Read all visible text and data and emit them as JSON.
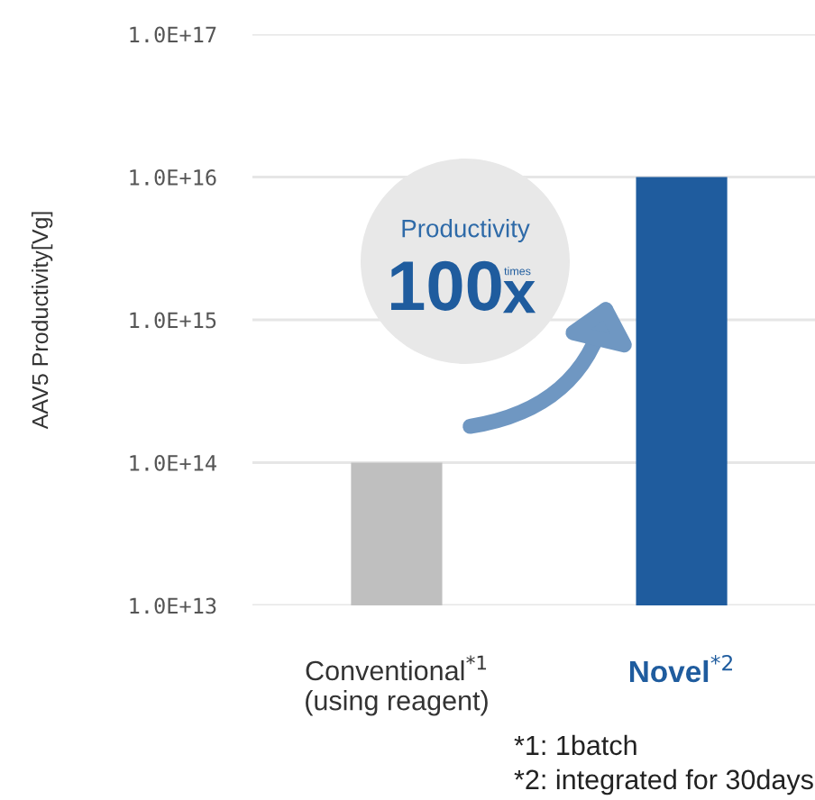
{
  "chart_data": {
    "type": "bar",
    "ylabel": "AAV5 Productivity[Vg]",
    "categories": [
      "Conventional$^{*1}$\n(using reagent)",
      "Novel$^{*2}$"
    ],
    "values": [
      100000000000000.0,
      1e+16
    ],
    "colors": [
      "#bfbfbf",
      "#1f5c9e"
    ],
    "log": "y",
    "ylim": [
      10000000000000.0,
      1e+17
    ],
    "yticks": [
      {
        "value": 10000000000000.0,
        "label": "1.0E+13"
      },
      {
        "value": 100000000000000.0,
        "label": "1.0E+14"
      },
      {
        "value": 1000000000000000.0,
        "label": "1.0E+15"
      },
      {
        "value": 1e+16,
        "label": "1.0E+16"
      },
      {
        "value": 1e+17,
        "label": "1.0E+17"
      }
    ],
    "grid": "y",
    "annotations": [
      "Productivity",
      "100",
      "times",
      "x",
      "*1: 1batch",
      "*2: integrated for 30days"
    ]
  }
}
